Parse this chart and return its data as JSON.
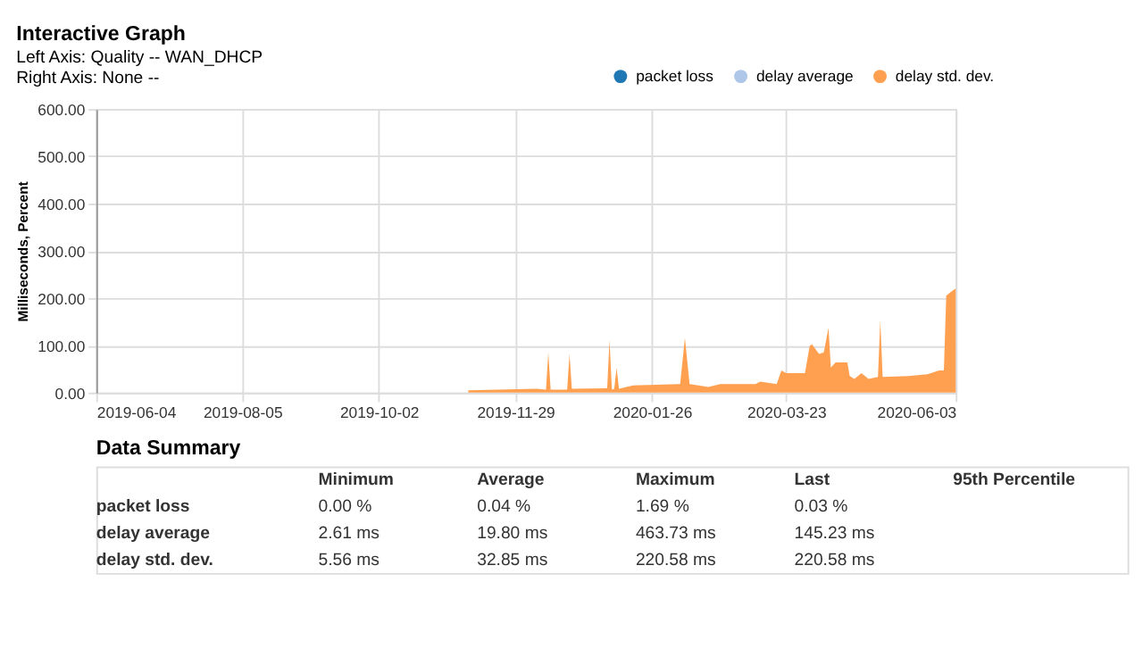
{
  "chart_data": [
    {
      "type": "area",
      "title": "Interactive Graph",
      "annotations": [
        "Left Axis: Quality -- WAN_DHCP",
        "Right Axis: None --"
      ],
      "ylabel": "Milliseconds, Percent",
      "x": [
        "2019-11-09",
        "2019-12-08",
        "2019-12-12",
        "2019-12-13",
        "2019-12-14",
        "2019-12-21",
        "2019-12-22",
        "2019-12-23",
        "2020-01-07",
        "2020-01-08",
        "2020-01-09",
        "2020-01-10",
        "2020-01-11",
        "2020-01-12",
        "2020-01-18",
        "2020-02-07",
        "2020-02-09",
        "2020-02-11",
        "2020-02-19",
        "2020-02-24",
        "2020-03-10",
        "2020-03-12",
        "2020-03-19",
        "2020-03-21",
        "2020-03-23",
        "2020-03-31",
        "2020-04-02",
        "2020-04-03",
        "2020-04-06",
        "2020-04-08",
        "2020-04-10",
        "2020-04-11",
        "2020-04-13",
        "2020-04-18",
        "2020-04-19",
        "2020-04-21",
        "2020-04-24",
        "2020-04-27",
        "2020-05-01",
        "2020-05-02",
        "2020-05-03",
        "2020-05-14",
        "2020-05-22",
        "2020-05-27",
        "2020-05-29",
        "2020-05-30",
        "2020-06-01",
        "2020-06-03"
      ],
      "series": [
        {
          "name": "packet loss",
          "color": "#1f77b4",
          "values": [
            null,
            null,
            null,
            null,
            null,
            null,
            null,
            null,
            null,
            null,
            null,
            null,
            null,
            null,
            null,
            null,
            null,
            null,
            null,
            null,
            null,
            null,
            null,
            null,
            null,
            null,
            null,
            null,
            null,
            null,
            null,
            null,
            null,
            null,
            null,
            null,
            null,
            null,
            null,
            null,
            null,
            null,
            null,
            null,
            null,
            null,
            null,
            null
          ]
        },
        {
          "name": "delay average",
          "color": "#aec7e8",
          "values": [
            null,
            null,
            null,
            null,
            null,
            null,
            null,
            null,
            null,
            null,
            null,
            null,
            null,
            null,
            null,
            null,
            null,
            null,
            null,
            null,
            null,
            null,
            null,
            null,
            null,
            null,
            null,
            null,
            null,
            null,
            null,
            null,
            null,
            null,
            null,
            null,
            null,
            null,
            null,
            null,
            null,
            null,
            null,
            null,
            null,
            null,
            null,
            null
          ]
        },
        {
          "name": "delay std. dev.",
          "color": "#ffa050",
          "values": [
            5,
            8,
            6,
            84,
            6,
            6,
            82,
            8,
            9,
            111,
            6,
            8,
            53,
            8,
            15,
            18,
            116,
            18,
            12,
            18,
            18,
            23,
            18,
            47,
            41,
            41,
            99,
            102,
            82,
            85,
            137,
            53,
            64,
            64,
            35,
            29,
            41,
            29,
            33,
            152,
            33,
            35,
            39,
            47,
            47,
            205,
            213,
            220
          ]
        }
      ],
      "xlim": [
        "2019-06-04",
        "2020-06-03"
      ],
      "xticks": [
        "2019-06-04",
        "2019-08-05",
        "2019-10-02",
        "2019-11-29",
        "2020-01-26",
        "2020-03-23",
        "2020-06-03"
      ],
      "ylim": [
        0,
        600
      ],
      "yticks": [
        {
          "value": 0,
          "label": "0.00"
        },
        {
          "value": 100,
          "label": "100.00"
        },
        {
          "value": 200,
          "label": "200.00"
        },
        {
          "value": 300,
          "label": "300.00"
        },
        {
          "value": 400,
          "label": "400.00"
        },
        {
          "value": 500,
          "label": "500.00"
        },
        {
          "value": 600,
          "label": "600.00"
        }
      ],
      "grid": true,
      "legend": "top right"
    },
    {
      "type": "other",
      "title": "Data Summary",
      "categories": [
        "Minimum",
        "Average",
        "Maximum",
        "Last",
        "95th Percentile"
      ],
      "y_categories": [
        "packet loss",
        "delay average",
        "delay std. dev."
      ],
      "cell_labels": [
        [
          "0.00 %",
          "0.04 %",
          "1.69 %",
          "0.03 %",
          null
        ],
        [
          "2.61 ms",
          "19.80 ms",
          "463.73 ms",
          "145.23 ms",
          null
        ],
        [
          "5.56 ms",
          "32.85 ms",
          "220.58 ms",
          "220.58 ms",
          null
        ]
      ]
    }
  ]
}
